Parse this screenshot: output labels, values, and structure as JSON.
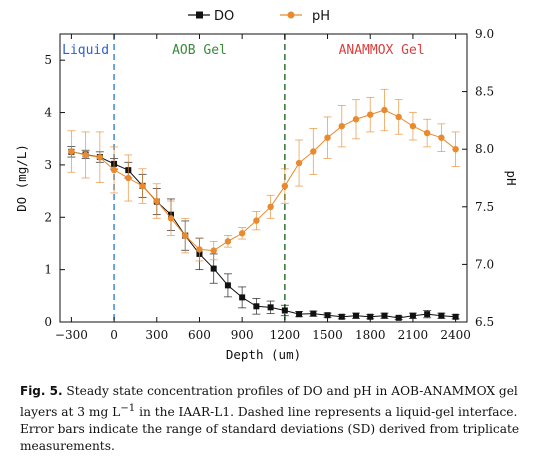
{
  "chart_data": {
    "type": "line",
    "xlabel": "Depth (um)",
    "ylabel_left": "DO (mg/L)",
    "ylabel_right": "pH",
    "xlim": [
      -380,
      2480
    ],
    "xticks": [
      -300,
      0,
      300,
      600,
      900,
      1200,
      1500,
      1800,
      2100,
      2400
    ],
    "ylim_left": [
      0,
      5.5
    ],
    "yticks_left": [
      0,
      1,
      2,
      3,
      4,
      5
    ],
    "ylim_right": [
      6.5,
      9.0
    ],
    "yticks_right": [
      "6.5",
      "7.0",
      "7.5",
      "8.0",
      "8.5",
      "9.0"
    ],
    "legend": {
      "placement": "top-center",
      "entries": [
        "DO",
        "pH"
      ]
    },
    "regions": [
      {
        "label": "Liquid",
        "color": "#2a5fd6"
      },
      {
        "label": "AOB Gel",
        "color": "#3a8a3a"
      },
      {
        "label": "ANAMMOX Gel",
        "color": "#d94040"
      }
    ],
    "vlines": [
      {
        "x": 0,
        "color": "#4a90d9"
      },
      {
        "x": 1200,
        "color": "#3a7d3a"
      }
    ],
    "series": [
      {
        "name": "DO",
        "axis": "left",
        "color": "#111111",
        "marker": "square",
        "x": [
          -300,
          -200,
          -100,
          0,
          100,
          200,
          300,
          400,
          500,
          600,
          700,
          800,
          900,
          1000,
          1100,
          1200,
          1300,
          1400,
          1500,
          1600,
          1700,
          1800,
          1900,
          2000,
          2100,
          2200,
          2300,
          2400
        ],
        "values": [
          3.25,
          3.2,
          3.15,
          3.02,
          2.9,
          2.6,
          2.3,
          2.05,
          1.65,
          1.3,
          1.02,
          0.7,
          0.47,
          0.3,
          0.28,
          0.22,
          0.15,
          0.16,
          0.13,
          0.1,
          0.12,
          0.1,
          0.12,
          0.08,
          0.12,
          0.15,
          0.12,
          0.1
        ],
        "errors": [
          0.1,
          0.08,
          0.1,
          0.1,
          0.15,
          0.22,
          0.25,
          0.3,
          0.28,
          0.3,
          0.28,
          0.22,
          0.2,
          0.15,
          0.12,
          0.1,
          0.05,
          0.05,
          0.04,
          0.04,
          0.05,
          0.04,
          0.05,
          0.03,
          0.05,
          0.07,
          0.05,
          0.04
        ]
      },
      {
        "name": "pH",
        "axis": "right",
        "color": "#e88a2e",
        "marker": "circle",
        "x": [
          -300,
          -200,
          -100,
          0,
          100,
          200,
          300,
          400,
          500,
          600,
          700,
          800,
          900,
          1000,
          1100,
          1200,
          1300,
          1400,
          1500,
          1600,
          1700,
          1800,
          1900,
          2000,
          2100,
          2200,
          2300,
          2400
        ],
        "values": [
          7.98,
          7.95,
          7.93,
          7.82,
          7.75,
          7.68,
          7.55,
          7.4,
          7.25,
          7.13,
          7.12,
          7.2,
          7.27,
          7.38,
          7.5,
          7.68,
          7.88,
          7.98,
          8.1,
          8.2,
          8.26,
          8.3,
          8.34,
          8.28,
          8.2,
          8.14,
          8.1,
          8.0
        ],
        "errors": [
          0.18,
          0.2,
          0.22,
          0.2,
          0.2,
          0.15,
          0.15,
          0.15,
          0.15,
          0.1,
          0.08,
          0.05,
          0.05,
          0.08,
          0.1,
          0.15,
          0.2,
          0.2,
          0.18,
          0.18,
          0.17,
          0.15,
          0.18,
          0.15,
          0.12,
          0.12,
          0.12,
          0.15
        ]
      }
    ]
  },
  "caption": {
    "label": "Fig. 5.",
    "text_before_unit": " Steady state concentration profiles of DO and pH in AOB-ANAMMOX gel layers at 3 mg L",
    "unit_exponent": "−1",
    "text_after_unit": " in the IAAR-L1. Dashed line represents a liquid-gel interface. Error bars indicate the range of standard deviations (SD) derived from triplicate measurements."
  }
}
